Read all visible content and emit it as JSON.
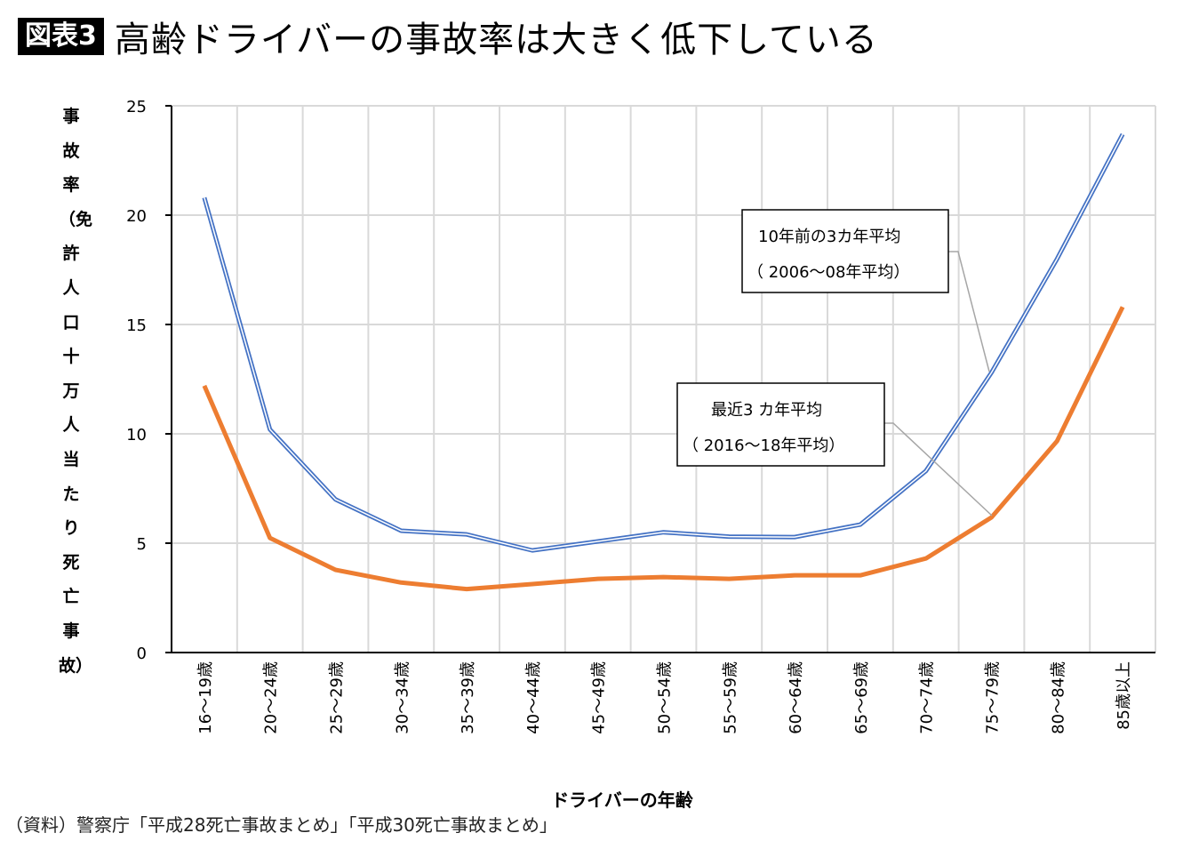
{
  "header": {
    "badge": "図表3",
    "title": "高齢ドライバーの事故率は大きく低下している"
  },
  "source": "（資料）警察庁「平成28死亡事故まとめ」「平成30死亡事故まとめ」",
  "chart_data": {
    "type": "line",
    "title": "高齢ドライバーの事故率は大きく低下している",
    "xlabel": "ドライバーの年齢",
    "ylabel": "事故率（免許人口十万人当たり死亡事故）",
    "ylim": [
      0,
      25
    ],
    "yticks": [
      "0",
      "5",
      "10",
      "15",
      "20",
      "25"
    ],
    "grid": true,
    "categories": [
      "16～19歳",
      "20～24歳",
      "25～29歳",
      "30～34歳",
      "35～39歳",
      "40～44歳",
      "45～49歳",
      "50～54歳",
      "55～59歳",
      "60～64歳",
      "65～69歳",
      "70～74歳",
      "75～79歳",
      "80～84歳",
      "85歳以上"
    ],
    "series": [
      {
        "name": "10年前の3カ年平均（2006～08年平均）",
        "label_lines": [
          "10年前の3カ年平均",
          "（ 2006～08年平均）"
        ],
        "color": "#4472c4",
        "values": [
          20.8,
          10.2,
          7.0,
          5.57,
          5.4,
          4.67,
          5.08,
          5.5,
          5.3,
          5.28,
          5.85,
          8.3,
          12.8,
          18.0,
          23.7
        ]
      },
      {
        "name": "最近3カ年平均（2016～18年平均）",
        "label_lines": [
          "最近3 カ年平均",
          "（ 2016～18年平均）"
        ],
        "color": "#ed7d31",
        "values": [
          12.2,
          5.24,
          3.78,
          3.2,
          2.9,
          3.13,
          3.37,
          3.45,
          3.37,
          3.53,
          3.53,
          4.3,
          6.18,
          9.67,
          15.8
        ]
      }
    ]
  }
}
